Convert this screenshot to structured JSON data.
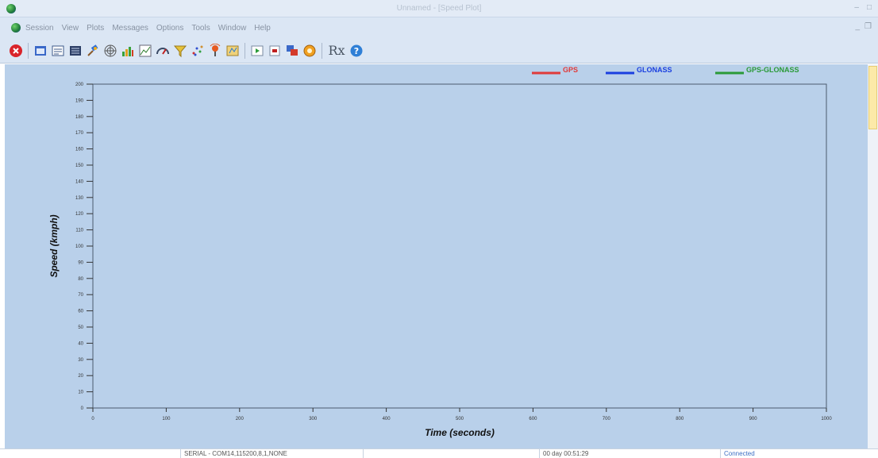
{
  "window": {
    "title": "Unnamed - [Speed Plot]"
  },
  "menu": {
    "items": [
      "Session",
      "View",
      "Plots",
      "Messages",
      "Options",
      "Tools",
      "Window",
      "Help"
    ]
  },
  "toolbar": {
    "icons": [
      "stop-icon",
      "session-icon",
      "messages-icon",
      "console-icon",
      "satellite-icon",
      "sky-plot-icon",
      "signal-icon",
      "plot-icon",
      "gauge-icon",
      "filter-icon",
      "scatter-icon",
      "antenna-icon",
      "map-icon",
      "play-icon",
      "log-icon",
      "windows-icon",
      "settings-icon",
      "rx-icon",
      "help-icon"
    ],
    "rx_label": "Rx"
  },
  "chart_data": {
    "type": "line",
    "xlabel": "Time  (seconds)",
    "ylabel": "Speed  (kmph)",
    "xlim": [
      0,
      1000
    ],
    "ylim": [
      0,
      200
    ],
    "x_ticks": [
      0,
      100,
      200,
      300,
      400,
      500,
      600,
      700,
      800,
      900,
      1000
    ],
    "y_ticks": [
      0,
      10,
      20,
      30,
      40,
      50,
      60,
      70,
      80,
      90,
      100,
      110,
      120,
      130,
      140,
      150,
      160,
      170,
      180,
      190,
      200
    ],
    "legend_position": "top-right",
    "grid": false,
    "series": [
      {
        "name": "GPS",
        "color": "#e03a3a",
        "values": []
      },
      {
        "name": "GLONASS",
        "color": "#1a3fe0",
        "values": []
      },
      {
        "name": "GPS-GLONASS",
        "color": "#2a9a38",
        "values": []
      }
    ]
  },
  "status": {
    "port": "SERIAL - COM14,115200,8,1,NONE",
    "elapsed": "00 day 00:51:29",
    "connection": "Connected"
  }
}
